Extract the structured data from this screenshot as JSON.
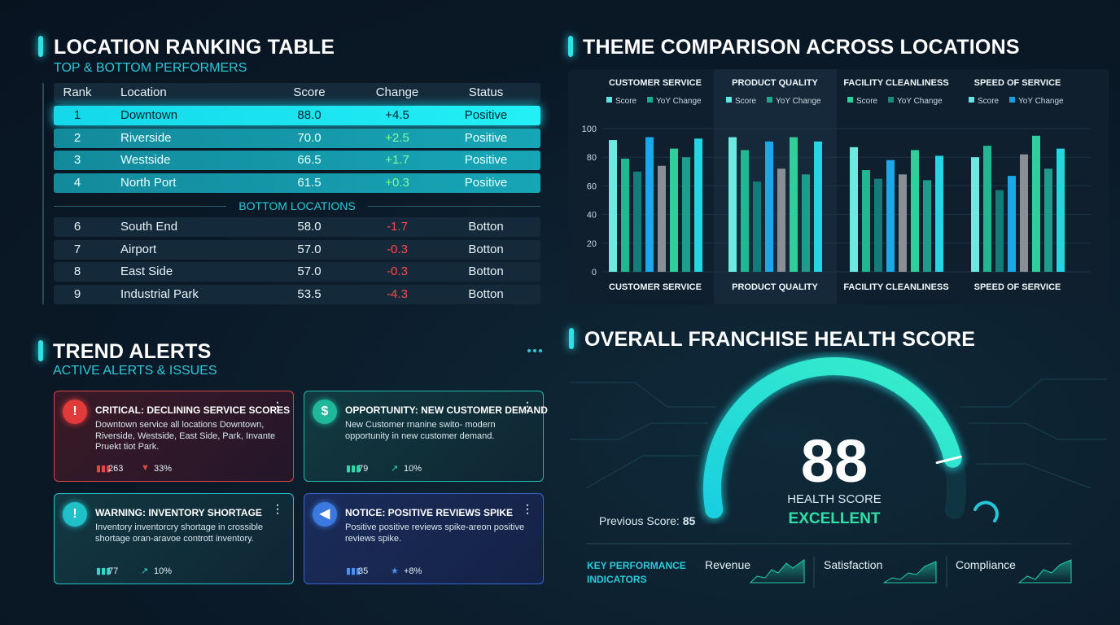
{
  "ranking": {
    "title": "LOCATION RANKING TABLE",
    "subtitle": "TOP & BOTTOM PERFORMERS",
    "columns": [
      "Rank",
      "Location",
      "Score",
      "Change",
      "Status"
    ],
    "top_rows": [
      [
        "1",
        "Downtown",
        "88.0",
        "+4.5",
        "Positive"
      ],
      [
        "2",
        "Riverside",
        "70.0",
        "+2.5",
        "Positive"
      ],
      [
        "3",
        "Westside",
        "66.5",
        "+1.7",
        "Positive"
      ],
      [
        "4",
        "North Port",
        "61.5",
        "+0.3",
        "Positive"
      ]
    ],
    "divider": "BOTTOM LOCATIONS",
    "bottom_rows": [
      [
        "6",
        "South End",
        "58.0",
        "-1.7",
        "Botton"
      ],
      [
        "7",
        "Airport",
        "57.0",
        "-0.3",
        "Botton"
      ],
      [
        "8",
        "East Side",
        "57.0",
        "-0.3",
        "Botton"
      ],
      [
        "9",
        "Industrial Park",
        "53.5",
        "-4.3",
        "Botton"
      ]
    ]
  },
  "alerts": {
    "title": "TREND ALERTS",
    "subtitle": "ACTIVE ALERTS & ISSUES",
    "cards": [
      {
        "title": "CRITICAL: DECLINING SERVICE SCORES",
        "body": "Downtown service all locations Downtown, Riverside, Westside, East Side, Park, Invante Pruekt tiot Park.",
        "count": "263",
        "change": "33%"
      },
      {
        "title": "OPPORTUNITY: NEW CUSTOMER DEMAND",
        "body": "New Customer rnanine swito- modern opportunity in new customer demand.",
        "count": "79",
        "change": "10%"
      },
      {
        "title": "WARNING: INVENTORY SHORTAGE",
        "body": "Inventory inventorcry shortage in crossible shortage oran-aravoe contrott inventory.",
        "count": "77",
        "change": "10%"
      },
      {
        "title": "NOTICE: POSITIVE REVIEWS SPIKE",
        "body": "Positive positive reviews spike-areon positive reviews spike.",
        "count": "35",
        "change": "+8%"
      }
    ]
  },
  "chart_data": {
    "type": "bar",
    "title": "THEME COMPARISON ACROSS LOCATIONS",
    "categories": [
      "CUSTOMER SERVICE",
      "PRODUCT QUALITY",
      "FACILITY CLEANLINESS",
      "SPEED OF SERVICE"
    ],
    "ylim": [
      0,
      100
    ],
    "yticks": [
      0,
      20,
      40,
      60,
      80,
      100
    ],
    "grid": true,
    "bar_colors": [
      "#6ee8e0",
      "#1fb890",
      "#137c78",
      "#1aa8e8",
      "#8a8f96",
      "#2ecf9a",
      "#1f9c8c",
      "#22d6e6"
    ],
    "panels": [
      {
        "title": "CUSTOMER SERVICE",
        "legend": [
          {
            "name": "Score",
            "color": "#5ee6e0"
          },
          {
            "name": "YoY Change",
            "color": "#1fa88f"
          }
        ],
        "values": [
          92,
          79,
          70,
          94,
          74,
          86,
          80,
          93
        ]
      },
      {
        "title": "PRODUCT QUALITY",
        "legend": [
          {
            "name": "Score",
            "color": "#5ee6e0"
          },
          {
            "name": "YoY Change",
            "color": "#1fa88f"
          }
        ],
        "values": [
          94,
          85,
          63,
          91,
          72,
          94,
          68,
          91
        ]
      },
      {
        "title": "FACILITY CLEANLINESS",
        "legend": [
          {
            "name": "Score",
            "color": "#2ecf9a"
          },
          {
            "name": "YoY Change",
            "color": "#1a8a80"
          }
        ],
        "values": [
          87,
          71,
          65,
          78,
          68,
          85,
          64,
          81
        ]
      },
      {
        "title": "SPEED OF SERVICE",
        "legend": [
          {
            "name": "Score",
            "color": "#5ee6e0"
          },
          {
            "name": "YoY Change",
            "color": "#1aa0e0"
          }
        ],
        "values": [
          80,
          88,
          57,
          67,
          82,
          95,
          72,
          86
        ]
      }
    ]
  },
  "health": {
    "title": "OVERALL FRANCHISE HEALTH SCORE",
    "score": 88,
    "range": [
      0,
      100
    ],
    "label": "HEALTH SCORE",
    "rating": "EXCELLENT",
    "previous_label": "Previous Score:",
    "previous": 85,
    "kpi_title": "KEY PERFORMANCE INDICATORS",
    "kpis": [
      "Revenue",
      "Satisfaction",
      "Compliance"
    ]
  }
}
